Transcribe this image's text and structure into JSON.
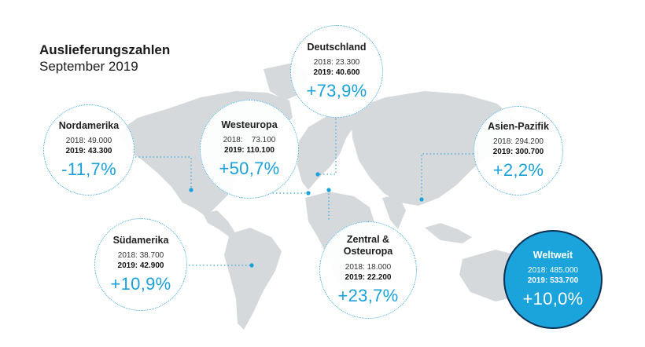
{
  "header": {
    "title": "Auslieferungszahlen",
    "subtitle": "September 2019"
  },
  "colors": {
    "accent": "#1aa1d9",
    "land": "#d5d9dc",
    "dots": "#3aa7d8",
    "world_border": "#0d2f52"
  },
  "regions": {
    "nordamerika": {
      "name": "Nordamerika",
      "y2018": "2018: 49.000",
      "y2019": "2019: 43.300",
      "change": "-11,7%"
    },
    "westeuropa": {
      "name": "Westeuropa",
      "y2018": "2018:    73.100",
      "y2019": "2019: 110.100",
      "change": "+50,7%"
    },
    "deutschland": {
      "name": "Deutschland",
      "y2018": "2018: 23.300",
      "y2019": "2019: 40.600",
      "change": "+73,9%"
    },
    "asien_pazifik": {
      "name": "Asien-Pazifik",
      "y2018": "2018: 294.200",
      "y2019": "2019: 300.700",
      "change": "+2,2%"
    },
    "suedamerika": {
      "name": "Südamerika",
      "y2018": "2018: 38.700",
      "y2019": "2019: 42.900",
      "change": "+10,9%"
    },
    "zentral_osteuropa": {
      "name": "Zentral &\nOsteuropa",
      "y2018": "2018: 18.000",
      "y2019": "2019: 22.200",
      "change": "+23,7%"
    },
    "weltweit": {
      "name": "Weltweit",
      "y2018": "2018: 485.000",
      "y2019": "2019: 533.700",
      "change": "+10,0%"
    }
  }
}
